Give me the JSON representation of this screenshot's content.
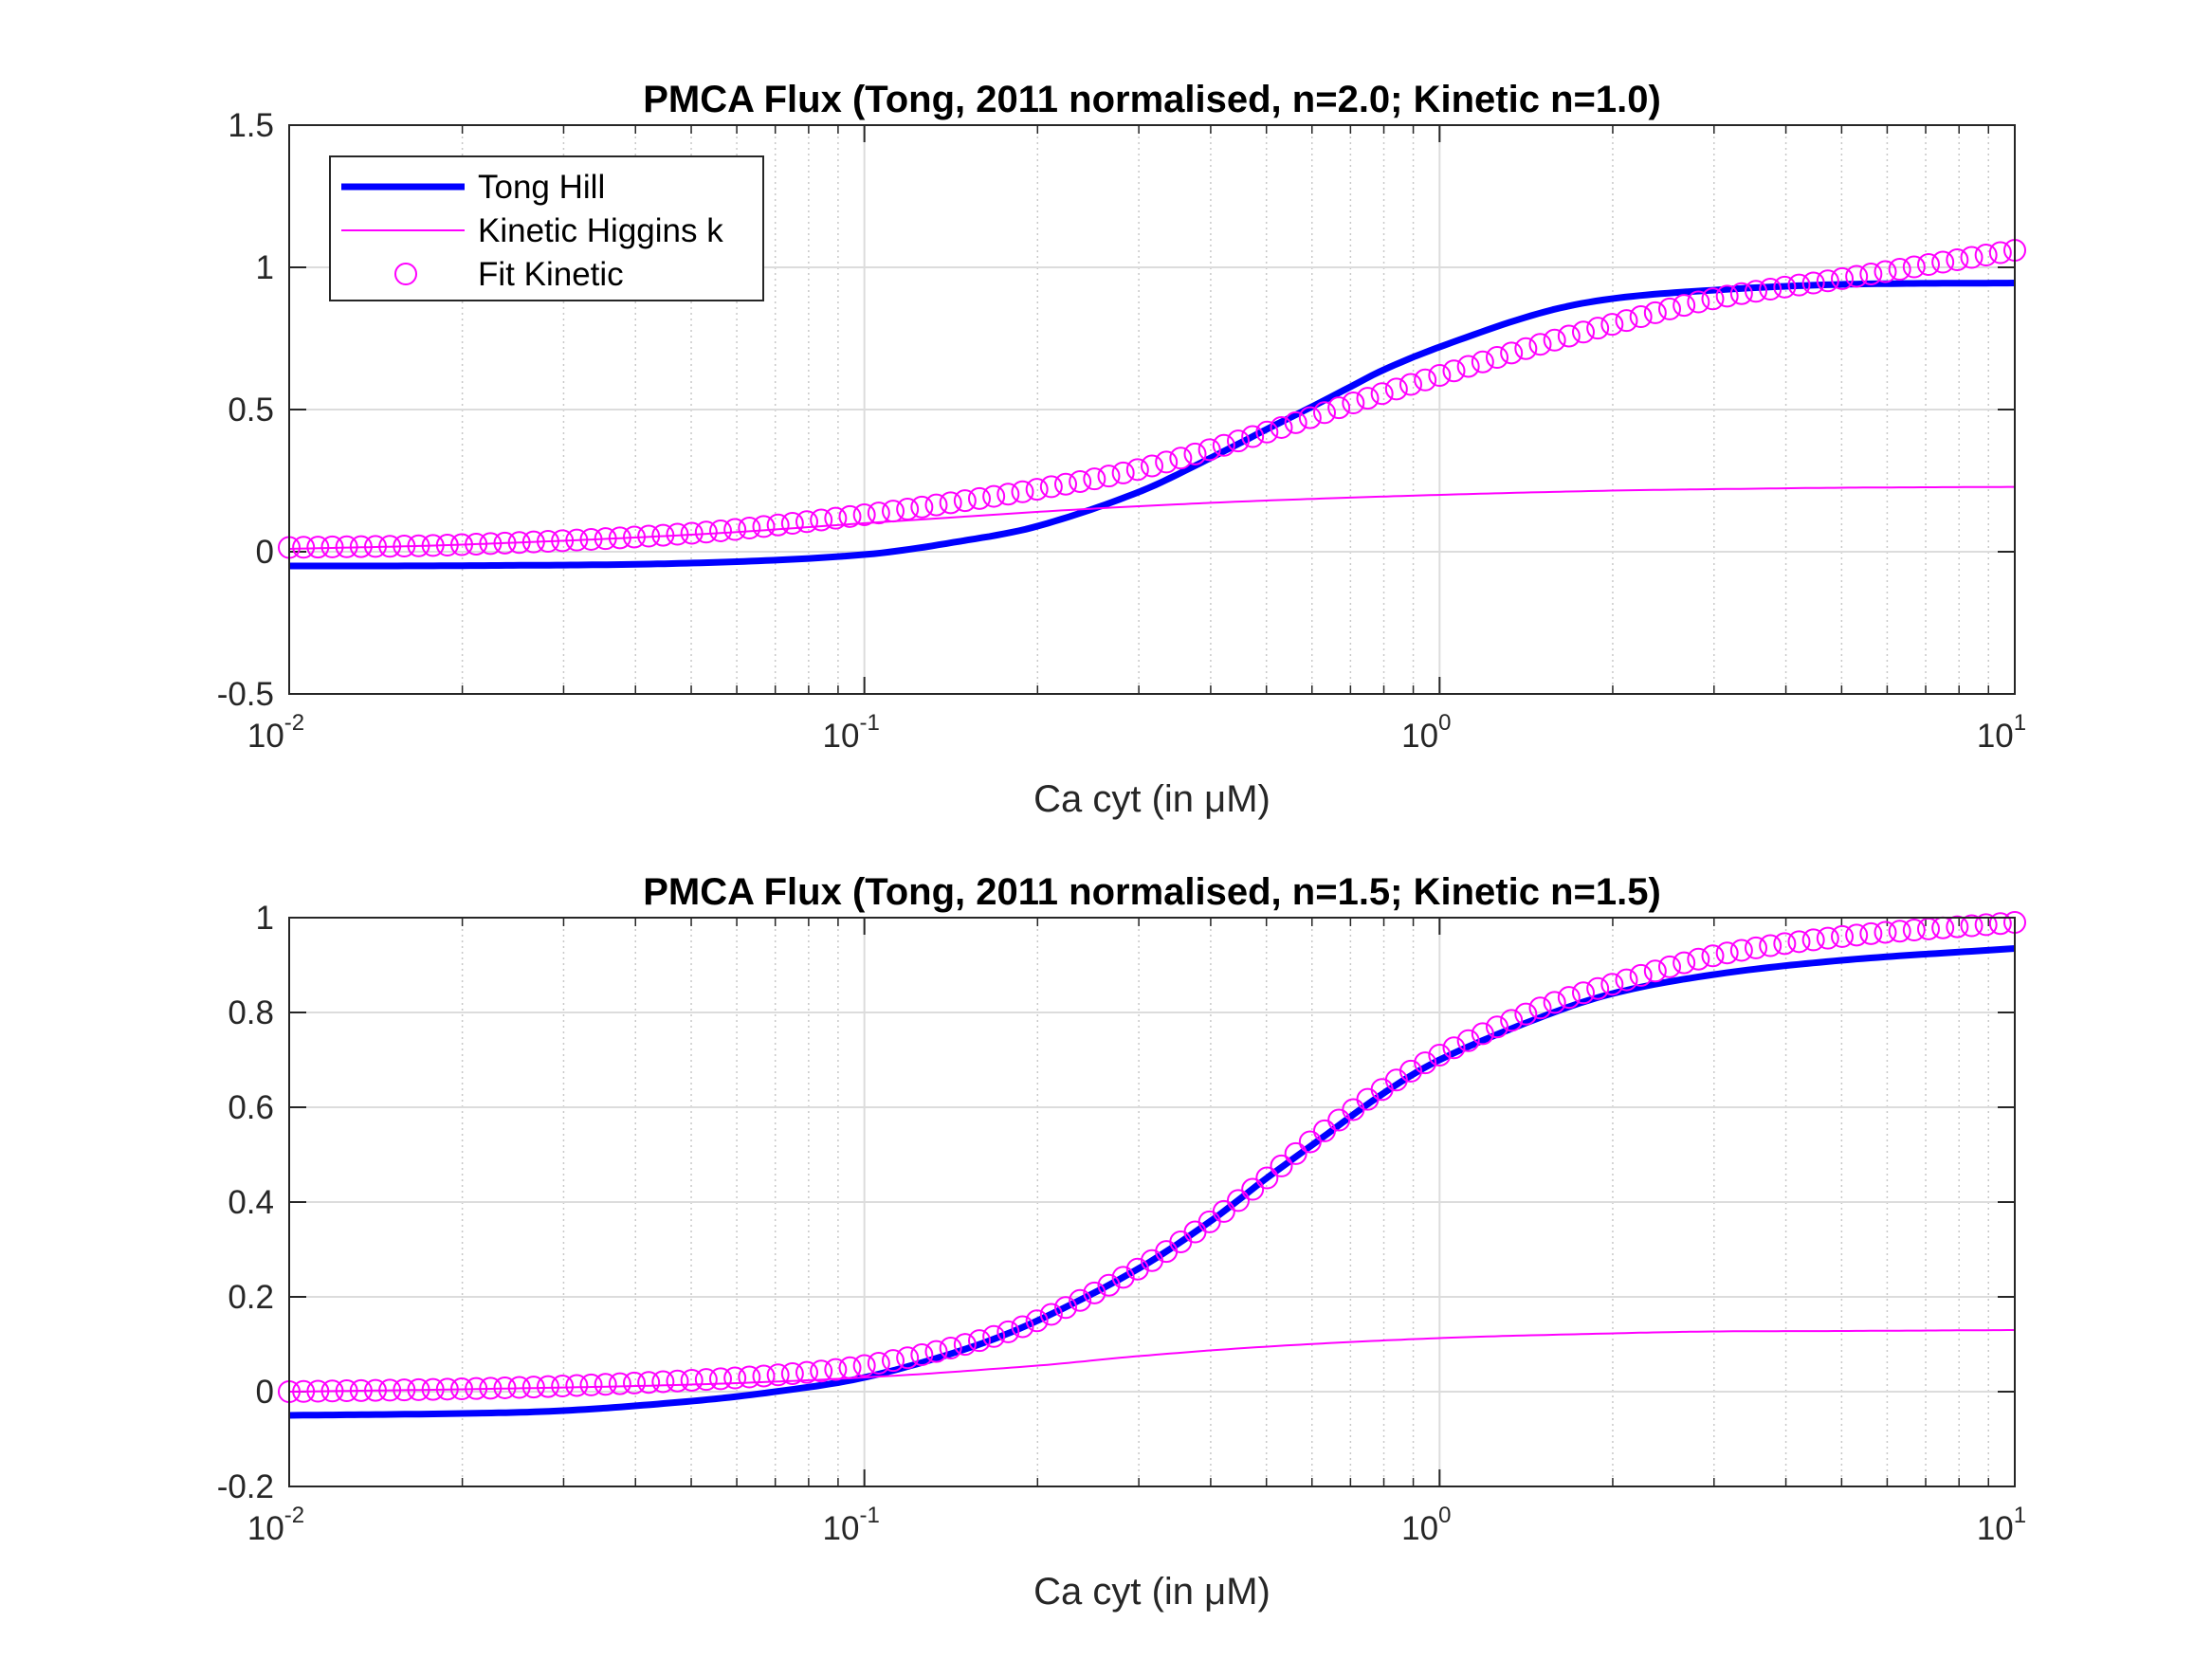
{
  "chart_data": [
    {
      "type": "line",
      "title": "PMCA Flux (Tong, 2011 normalised, n=2.0; Kinetic n=1.0)",
      "xlabel": "Ca cyt (in μM)",
      "ylabel": "",
      "xscale": "log",
      "xlim": [
        0.01,
        10
      ],
      "ylim": [
        -0.5,
        1.5
      ],
      "xticks": [
        {
          "base": "10",
          "exp": "-2",
          "value": 0.01
        },
        {
          "base": "10",
          "exp": "-1",
          "value": 0.1
        },
        {
          "base": "10",
          "exp": "0",
          "value": 1
        },
        {
          "base": "10",
          "exp": "1",
          "value": 10
        }
      ],
      "yticks": [
        {
          "label": "-0.5",
          "value": -0.5
        },
        {
          "label": "0",
          "value": 0
        },
        {
          "label": "0.5",
          "value": 0.5
        },
        {
          "label": "1",
          "value": 1
        },
        {
          "label": "1.5",
          "value": 1.5
        }
      ],
      "grid": true,
      "legend_position": "top-left",
      "series": [
        {
          "name": "Tong Hill",
          "style": "thick-line",
          "color": "#0000ff",
          "x": [
            0.01,
            0.02,
            0.05,
            0.1,
            0.15,
            0.2,
            0.3,
            0.4,
            0.5,
            0.6,
            0.7,
            0.8,
            1.0,
            1.5,
            2.0,
            3.0,
            5.0,
            10.0
          ],
          "values": [
            -0.05,
            -0.049,
            -0.04,
            -0.01,
            0.04,
            0.09,
            0.21,
            0.33,
            0.43,
            0.51,
            0.58,
            0.64,
            0.72,
            0.84,
            0.89,
            0.92,
            0.94,
            0.945
          ]
        },
        {
          "name": "Kinetic Higgins k",
          "style": "thin-line",
          "color": "#ff00ff",
          "x": [
            0.01,
            0.02,
            0.05,
            0.1,
            0.2,
            0.3,
            0.5,
            1.0,
            2.0,
            3.0,
            5.0,
            10.0
          ],
          "values": [
            0.01,
            0.025,
            0.06,
            0.1,
            0.14,
            0.16,
            0.18,
            0.2,
            0.215,
            0.22,
            0.225,
            0.228
          ]
        },
        {
          "name": "Fit Kinetic",
          "style": "circles",
          "color": "#ff00ff",
          "x": [
            0.01,
            0.02,
            0.05,
            0.1,
            0.15,
            0.2,
            0.3,
            0.5,
            0.7,
            1.0,
            1.5,
            2.0,
            3.0,
            5.0,
            10.0
          ],
          "values": [
            0.015,
            0.025,
            0.065,
            0.13,
            0.18,
            0.22,
            0.29,
            0.42,
            0.52,
            0.62,
            0.73,
            0.8,
            0.89,
            0.96,
            1.06
          ]
        }
      ]
    },
    {
      "type": "line",
      "title": "PMCA Flux (Tong, 2011 normalised, n=1.5; Kinetic n=1.5)",
      "xlabel": "Ca cyt (in μM)",
      "ylabel": "",
      "xscale": "log",
      "xlim": [
        0.01,
        10
      ],
      "ylim": [
        -0.2,
        1
      ],
      "xticks": [
        {
          "base": "10",
          "exp": "-2",
          "value": 0.01
        },
        {
          "base": "10",
          "exp": "-1",
          "value": 0.1
        },
        {
          "base": "10",
          "exp": "0",
          "value": 1
        },
        {
          "base": "10",
          "exp": "1",
          "value": 10
        }
      ],
      "yticks": [
        {
          "label": "-0.2",
          "value": -0.2
        },
        {
          "label": "0",
          "value": 0
        },
        {
          "label": "0.2",
          "value": 0.2
        },
        {
          "label": "0.4",
          "value": 0.4
        },
        {
          "label": "0.6",
          "value": 0.6
        },
        {
          "label": "0.8",
          "value": 0.8
        },
        {
          "label": "1",
          "value": 1
        }
      ],
      "grid": true,
      "series": [
        {
          "name": "Tong Hill",
          "style": "thick-line",
          "color": "#0000ff",
          "x": [
            0.01,
            0.02,
            0.03,
            0.05,
            0.07,
            0.1,
            0.15,
            0.2,
            0.3,
            0.4,
            0.5,
            0.6,
            0.8,
            1.0,
            1.5,
            2.0,
            3.0,
            5.0,
            10.0
          ],
          "values": [
            -0.05,
            -0.046,
            -0.04,
            -0.02,
            0.0,
            0.03,
            0.09,
            0.15,
            0.26,
            0.36,
            0.45,
            0.52,
            0.63,
            0.7,
            0.79,
            0.84,
            0.88,
            0.91,
            0.935
          ]
        },
        {
          "name": "Kinetic Higgins k",
          "style": "thin-line",
          "color": "#ff00ff",
          "x": [
            0.01,
            0.02,
            0.05,
            0.1,
            0.2,
            0.3,
            0.5,
            1.0,
            2.0,
            3.0,
            5.0,
            10.0
          ],
          "values": [
            0.0,
            0.005,
            0.015,
            0.03,
            0.055,
            0.075,
            0.095,
            0.113,
            0.123,
            0.127,
            0.128,
            0.13
          ]
        },
        {
          "name": "Fit Kinetic",
          "style": "circles",
          "color": "#ff00ff",
          "x": [
            0.01,
            0.02,
            0.03,
            0.05,
            0.07,
            0.1,
            0.15,
            0.2,
            0.3,
            0.4,
            0.5,
            0.6,
            0.8,
            1.0,
            1.5,
            2.0,
            3.0,
            5.0,
            10.0
          ],
          "values": [
            0.0,
            0.006,
            0.012,
            0.024,
            0.035,
            0.055,
            0.1,
            0.15,
            0.26,
            0.36,
            0.45,
            0.53,
            0.64,
            0.71,
            0.81,
            0.86,
            0.92,
            0.96,
            0.99
          ]
        }
      ]
    }
  ]
}
